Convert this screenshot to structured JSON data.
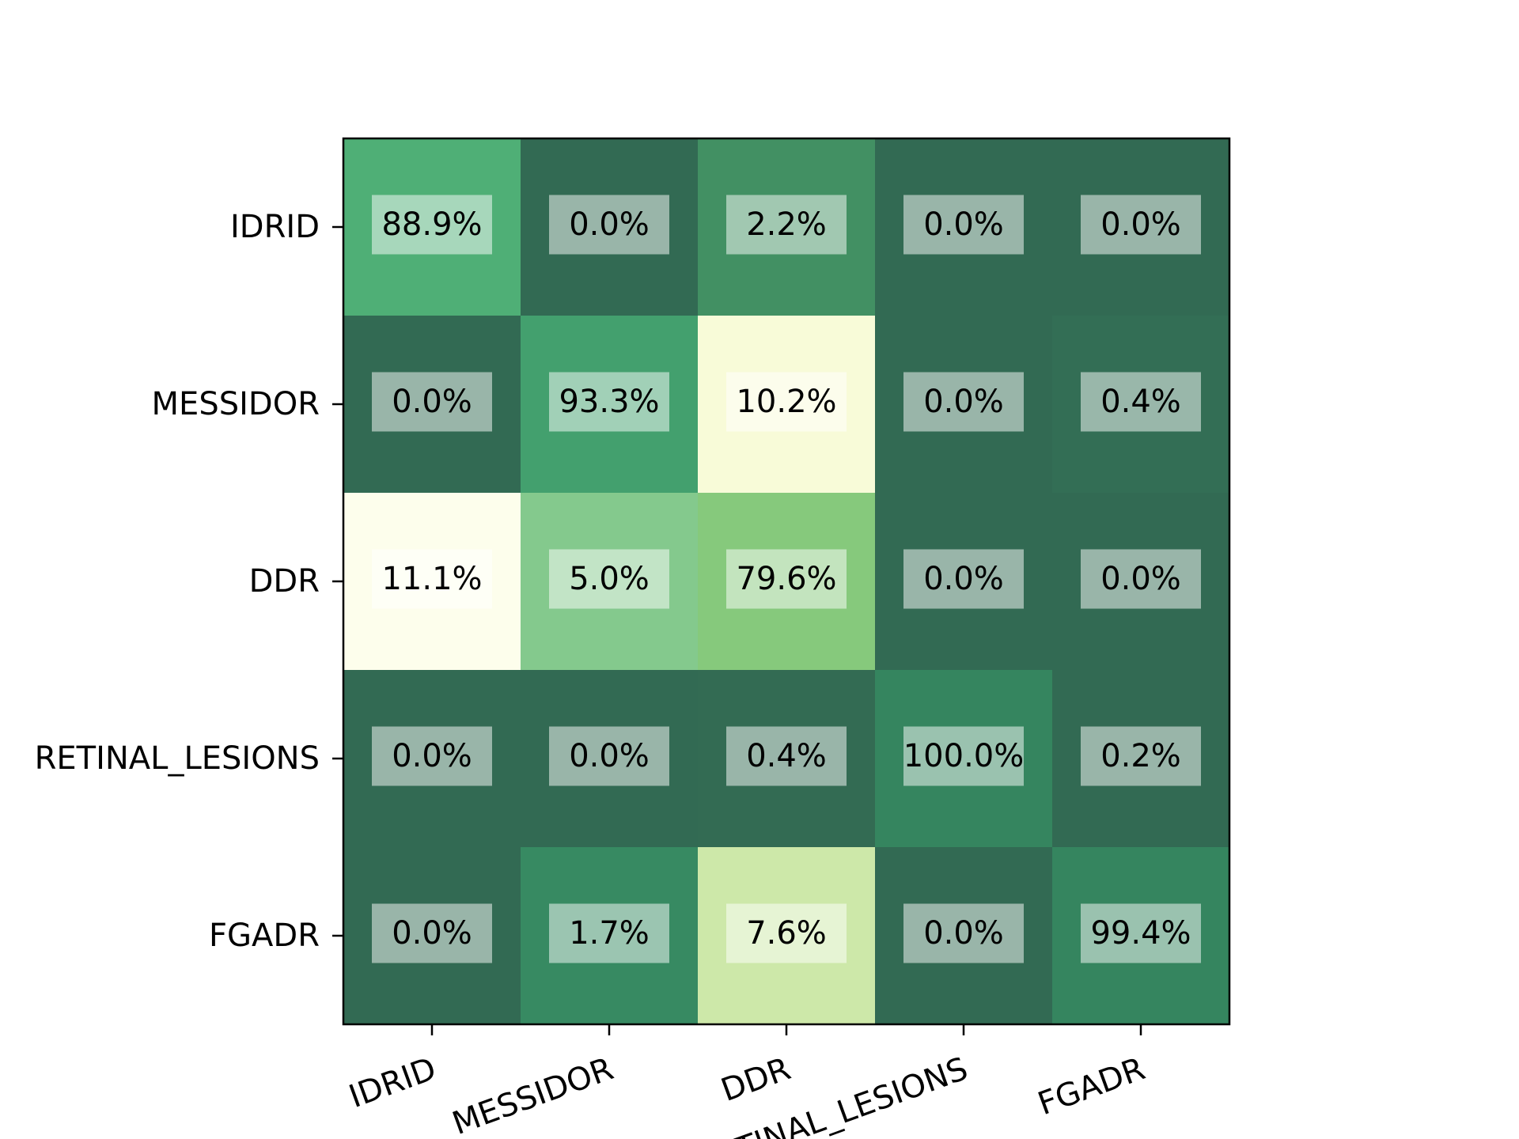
{
  "chart_data": {
    "type": "heatmap",
    "title": "",
    "xlabel": "",
    "ylabel": "",
    "x_categories": [
      "IDRID",
      "MESSIDOR",
      "DDR",
      "RETINAL_LESIONS",
      "FGADR"
    ],
    "y_categories": [
      "IDRID",
      "MESSIDOR",
      "DDR",
      "RETINAL_LESIONS",
      "FGADR"
    ],
    "values": [
      [
        88.9,
        0.0,
        2.2,
        0.0,
        0.0
      ],
      [
        0.0,
        93.3,
        10.2,
        0.0,
        0.4
      ],
      [
        11.1,
        5.0,
        79.6,
        0.0,
        0.0
      ],
      [
        0.0,
        0.0,
        0.4,
        100.0,
        0.2
      ],
      [
        0.0,
        1.7,
        7.6,
        0.0,
        99.4
      ]
    ],
    "cell_labels": [
      [
        "88.9%",
        "0.0%",
        "2.2%",
        "0.0%",
        "0.0%"
      ],
      [
        "0.0%",
        "93.3%",
        "10.2%",
        "0.0%",
        "0.4%"
      ],
      [
        "11.1%",
        "5.0%",
        "79.6%",
        "0.0%",
        "0.0%"
      ],
      [
        "0.0%",
        "0.0%",
        "0.4%",
        "100.0%",
        "0.2%"
      ],
      [
        "0.0%",
        "1.7%",
        "7.6%",
        "0.0%",
        "99.4%"
      ]
    ],
    "cell_colors": [
      [
        "#4faf76",
        "#326a53",
        "#429063",
        "#326a53",
        "#326a53"
      ],
      [
        "#326a53",
        "#43a06e",
        "#f8fbd8",
        "#326a53",
        "#336e55"
      ],
      [
        "#fdfeec",
        "#84c98d",
        "#86c97c",
        "#326a53",
        "#326a53"
      ],
      [
        "#326a53",
        "#326a53",
        "#336b53",
        "#35855f",
        "#326a53"
      ],
      [
        "#326a53",
        "#378a62",
        "#cde8a9",
        "#326a53",
        "#35855f"
      ]
    ],
    "colormap": "YlGn",
    "grid": false,
    "legend": "none"
  }
}
